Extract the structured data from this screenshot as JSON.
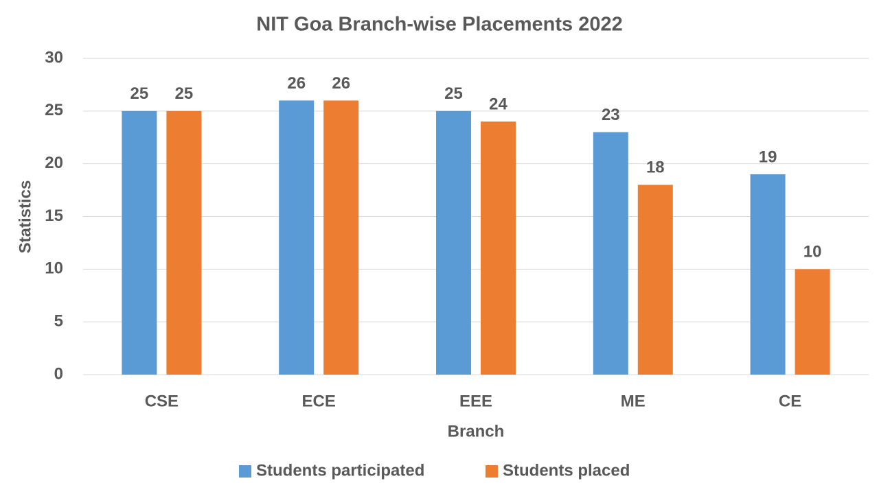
{
  "chart_data": {
    "type": "bar",
    "title": "NIT Goa Branch-wise Placements 2022",
    "x_label": "Branch",
    "y_label": "Statistics",
    "categories": [
      "CSE",
      "ECE",
      "EEE",
      "ME",
      "CE"
    ],
    "series": [
      {
        "name": "Students participated",
        "color": "#5b9bd5",
        "values": [
          25,
          26,
          25,
          23,
          19
        ]
      },
      {
        "name": "Students placed",
        "color": "#ed7d31",
        "values": [
          25,
          26,
          24,
          18,
          10
        ]
      }
    ],
    "ylim": [
      0,
      30
    ],
    "yticks": [
      0,
      5,
      10,
      15,
      20,
      25,
      30
    ],
    "grid": true,
    "legend": "bottom",
    "data_labels": true
  }
}
